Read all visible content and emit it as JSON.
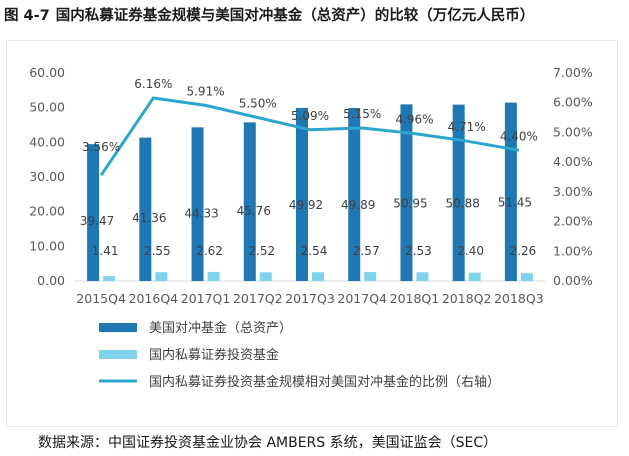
{
  "figure": {
    "number": "图 4-7",
    "title": "国内私募证券基金规模与美国对冲基金（总资产）的比较（万亿元人民币）",
    "source": "数据来源：中国证券投资基金业协会 AMBERS 系统，美国证监会（SEC）"
  },
  "colors": {
    "us_bar": "#1f77b4",
    "cn_bar": "#7fd3ea",
    "ratio_line": "#2ca6cf"
  },
  "chart_data": {
    "type": "bar",
    "categories": [
      "2015Q4",
      "2016Q4",
      "2017Q1",
      "2017Q2",
      "2017Q3",
      "2017Q4",
      "2018Q1",
      "2018Q2",
      "2018Q3"
    ],
    "series": [
      {
        "name": "美国对冲基金（总资产）",
        "type": "bar",
        "axis": "left",
        "values": [
          39.47,
          41.36,
          44.33,
          45.76,
          49.92,
          49.89,
          50.95,
          50.88,
          51.45
        ],
        "labels": [
          "39.47",
          "41.36",
          "44.33",
          "45.76",
          "49.92",
          "49.89",
          "50.95",
          "50.88",
          "51.45"
        ]
      },
      {
        "name": "国内私募证券投资基金",
        "type": "bar",
        "axis": "left",
        "values": [
          1.41,
          2.55,
          2.62,
          2.52,
          2.54,
          2.57,
          2.53,
          2.4,
          2.26
        ],
        "labels": [
          "1.41",
          "2.55",
          "2.62",
          "2.52",
          "2.54",
          "2.57",
          "2.53",
          "2.40",
          "2.26"
        ]
      },
      {
        "name": "国内私募证券投资基金规模相对美国对冲基金的比例（右轴）",
        "type": "line",
        "axis": "right",
        "values": [
          3.56,
          6.16,
          5.91,
          5.5,
          5.09,
          5.15,
          4.96,
          4.71,
          4.4
        ],
        "labels": [
          "3.56%",
          "6.16%",
          "5.91%",
          "5.50%",
          "5.09%",
          "5.15%",
          "4.96%",
          "4.71%",
          "4.40%"
        ]
      }
    ],
    "y_left": {
      "min": 0,
      "max": 60,
      "ticks": [
        "0.00",
        "10.00",
        "20.00",
        "30.00",
        "40.00",
        "50.00",
        "60.00"
      ]
    },
    "y_right": {
      "min": 0,
      "max": 7,
      "ticks": [
        "0.00%",
        "1.00%",
        "2.00%",
        "3.00%",
        "4.00%",
        "5.00%",
        "6.00%",
        "7.00%"
      ]
    },
    "grid": false,
    "legend_position": "bottom"
  }
}
